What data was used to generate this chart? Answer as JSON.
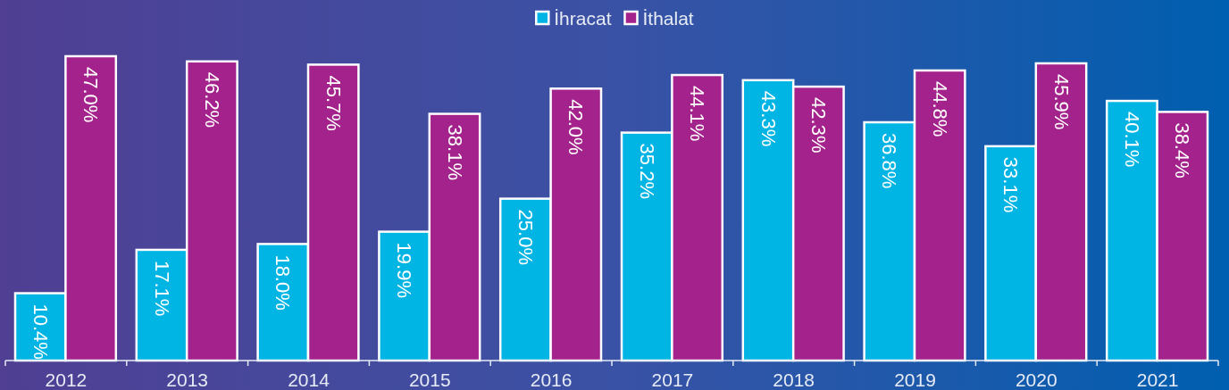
{
  "chart_data": {
    "type": "bar",
    "categories": [
      "2012",
      "2013",
      "2014",
      "2015",
      "2016",
      "2017",
      "2018",
      "2019",
      "2020",
      "2021"
    ],
    "series": [
      {
        "name": "İhracat",
        "color": "#00b4e4",
        "values": [
          10.4,
          17.1,
          18.0,
          19.9,
          25.0,
          35.2,
          43.3,
          36.8,
          33.1,
          40.1
        ],
        "value_labels": [
          "10.4%",
          "17.1%",
          "18.0%",
          "19.9%",
          "25.0%",
          "35.2%",
          "43.3%",
          "36.8%",
          "33.1%",
          "40.1%"
        ]
      },
      {
        "name": "İthalat",
        "color": "#a4228b",
        "values": [
          47.0,
          46.2,
          45.7,
          38.1,
          42.0,
          44.1,
          42.3,
          44.8,
          45.9,
          38.4
        ],
        "value_labels": [
          "47.0%",
          "46.2%",
          "45.7%",
          "38.1%",
          "42.0%",
          "44.1%",
          "42.3%",
          "44.8%",
          "45.9%",
          "38.4%"
        ]
      }
    ],
    "legend": "top"
  }
}
